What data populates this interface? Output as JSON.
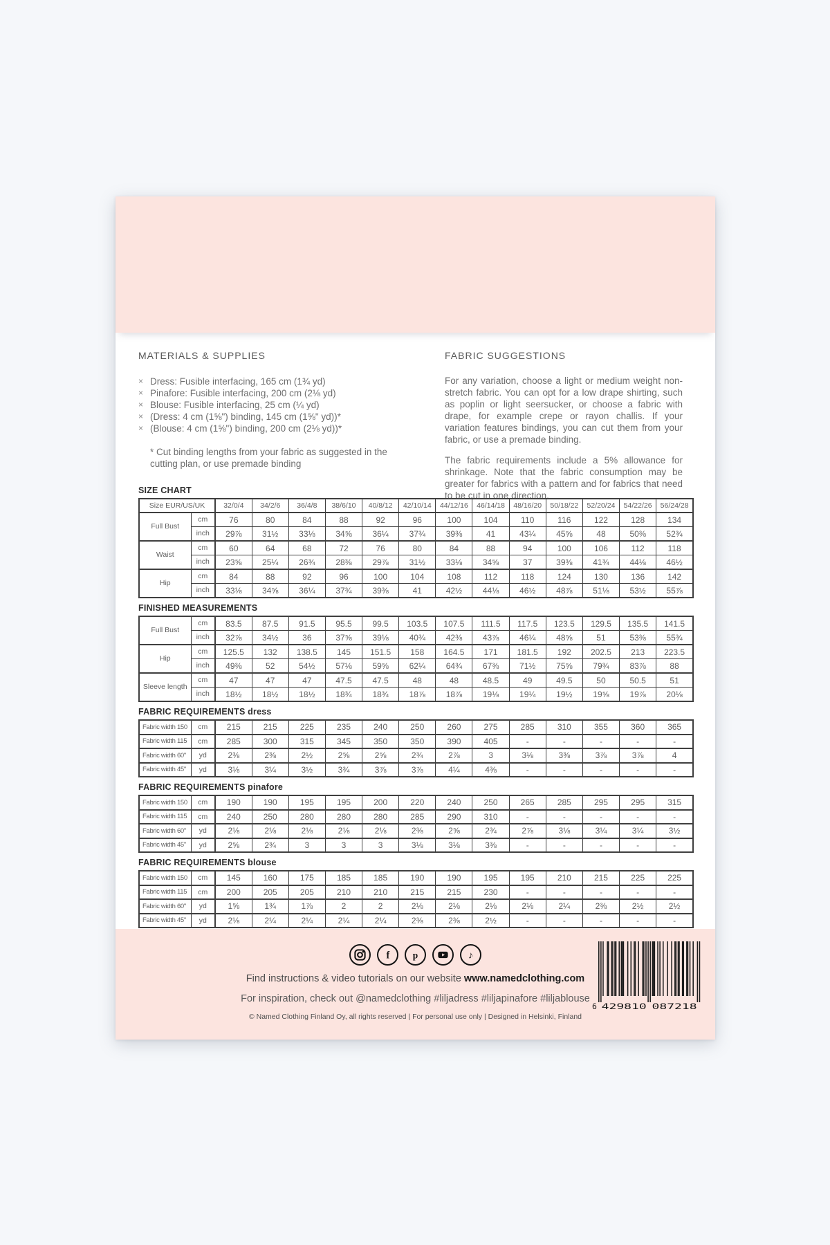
{
  "colors": {
    "pink": "#fce4df",
    "background": "#f5f7fa",
    "barcode_bar": "#1b1b1b"
  },
  "materials": {
    "title": "MATERIALS & SUPPLIES",
    "bullet": "×",
    "items": [
      "Dress: Fusible interfacing, 165 cm (1¾ yd)",
      "Pinafore: Fusible interfacing, 200 cm (2⅛ yd)",
      "Blouse: Fusible interfacing, 25 cm (¼ yd)",
      "(Dress: 4 cm (1⅝\") binding, 145 cm (1⅝\" yd))*",
      "(Blouse: 4 cm (1⅝\") binding, 200 cm (2⅛ yd))*"
    ],
    "footnote": "* Cut binding lengths from your fabric as suggested in the cutting plan, or use premade binding"
  },
  "fabric_suggestions": {
    "title": "FABRIC SUGGESTIONS",
    "paragraphs": [
      "For any variation, choose a light or medium weight non-stretch fabric. You can opt for a low drape shirting, such as poplin or light seersucker, or choose a fabric with drape, for example crepe or rayon challis. If your variation features bindings, you can cut them from your fabric, or use a premade binding.",
      "The fabric requirements include a 5% allowance for shrinkage. Note that the fabric consumption may be greater for fabrics with a pattern and for fabrics that need to be cut in one direction."
    ]
  },
  "size_chart": {
    "title": "SIZE CHART",
    "header": {
      "label": "Size EUR/US/UK",
      "sizes": [
        "32/0/4",
        "34/2/6",
        "36/4/8",
        "38/6/10",
        "40/8/12",
        "42/10/14",
        "44/12/16",
        "46/14/18",
        "48/16/20",
        "50/18/22",
        "52/20/24",
        "54/22/26",
        "56/24/28"
      ]
    },
    "groups": [
      {
        "label": "Full Bust",
        "rows": [
          {
            "unit": "cm",
            "values": [
              "76",
              "80",
              "84",
              "88",
              "92",
              "96",
              "100",
              "104",
              "110",
              "116",
              "122",
              "128",
              "134"
            ]
          },
          {
            "unit": "inch",
            "values": [
              "29⅞",
              "31½",
              "33⅛",
              "34⅝",
              "36¼",
              "37¾",
              "39⅜",
              "41",
              "43¼",
              "45⅝",
              "48",
              "50⅜",
              "52¾"
            ]
          }
        ]
      },
      {
        "label": "Waist",
        "rows": [
          {
            "unit": "cm",
            "values": [
              "60",
              "64",
              "68",
              "72",
              "76",
              "80",
              "84",
              "88",
              "94",
              "100",
              "106",
              "112",
              "118"
            ]
          },
          {
            "unit": "inch",
            "values": [
              "23⅝",
              "25¼",
              "26¾",
              "28⅜",
              "29⅞",
              "31½",
              "33⅛",
              "34⅝",
              "37",
              "39⅜",
              "41¾",
              "44⅛",
              "46½"
            ]
          }
        ]
      },
      {
        "label": "Hip",
        "rows": [
          {
            "unit": "cm",
            "values": [
              "84",
              "88",
              "92",
              "96",
              "100",
              "104",
              "108",
              "112",
              "118",
              "124",
              "130",
              "136",
              "142"
            ]
          },
          {
            "unit": "inch",
            "values": [
              "33⅛",
              "34⅝",
              "36¼",
              "37¾",
              "39⅜",
              "41",
              "42½",
              "44⅛",
              "46½",
              "48⅞",
              "51⅛",
              "53½",
              "55⅞"
            ]
          }
        ]
      }
    ]
  },
  "finished_measurements": {
    "title": "FINISHED MEASUREMENTS",
    "groups": [
      {
        "label": "Full Bust",
        "rows": [
          {
            "unit": "cm",
            "values": [
              "83.5",
              "87.5",
              "91.5",
              "95.5",
              "99.5",
              "103.5",
              "107.5",
              "111.5",
              "117.5",
              "123.5",
              "129.5",
              "135.5",
              "141.5"
            ]
          },
          {
            "unit": "inch",
            "values": [
              "32⅞",
              "34½",
              "36",
              "37⅝",
              "39⅛",
              "40¾",
              "42⅜",
              "43⅞",
              "46¼",
              "48⅝",
              "51",
              "53⅜",
              "55¾"
            ]
          }
        ]
      },
      {
        "label": "Hip",
        "rows": [
          {
            "unit": "cm",
            "values": [
              "125.5",
              "132",
              "138.5",
              "145",
              "151.5",
              "158",
              "164.5",
              "171",
              "181.5",
              "192",
              "202.5",
              "213",
              "223.5"
            ]
          },
          {
            "unit": "inch",
            "values": [
              "49⅜",
              "52",
              "54½",
              "57⅛",
              "59⅝",
              "62¼",
              "64¾",
              "67⅜",
              "71½",
              "75⅝",
              "79¾",
              "83⅞",
              "88"
            ]
          }
        ]
      },
      {
        "label": "Sleeve length",
        "rows": [
          {
            "unit": "cm",
            "values": [
              "47",
              "47",
              "47",
              "47.5",
              "47.5",
              "48",
              "48",
              "48.5",
              "49",
              "49.5",
              "50",
              "50.5",
              "51"
            ]
          },
          {
            "unit": "inch",
            "values": [
              "18½",
              "18½",
              "18½",
              "18¾",
              "18¾",
              "18⅞",
              "18⅞",
              "19⅛",
              "19¼",
              "19½",
              "19⅝",
              "19⅞",
              "20⅛"
            ]
          }
        ]
      }
    ]
  },
  "fabric_requirements": [
    {
      "title": "FABRIC REQUIREMENTS dress",
      "rows": [
        {
          "label": "Fabric width 150",
          "unit": "cm",
          "values": [
            "215",
            "215",
            "225",
            "235",
            "240",
            "250",
            "260",
            "275",
            "285",
            "310",
            "355",
            "360",
            "365"
          ]
        },
        {
          "label": "Fabric width 115",
          "unit": "cm",
          "values": [
            "285",
            "300",
            "315",
            "345",
            "350",
            "350",
            "390",
            "405",
            "-",
            "-",
            "-",
            "-",
            "-"
          ]
        },
        {
          "label": "Fabric width 60\"",
          "unit": "yd",
          "values": [
            "2⅜",
            "2⅜",
            "2½",
            "2⅝",
            "2⅝",
            "2¾",
            "2⅞",
            "3",
            "3⅛",
            "3⅜",
            "3⅞",
            "3⅞",
            "4"
          ]
        },
        {
          "label": "Fabric width 45\"",
          "unit": "yd",
          "values": [
            "3⅛",
            "3¼",
            "3½",
            "3¾",
            "3⅞",
            "3⅞",
            "4¼",
            "4⅜",
            "-",
            "-",
            "-",
            "-",
            "-"
          ]
        }
      ]
    },
    {
      "title": "FABRIC REQUIREMENTS pinafore",
      "rows": [
        {
          "label": "Fabric width 150",
          "unit": "cm",
          "values": [
            "190",
            "190",
            "195",
            "195",
            "200",
            "220",
            "240",
            "250",
            "265",
            "285",
            "295",
            "295",
            "315"
          ]
        },
        {
          "label": "Fabric width 115",
          "unit": "cm",
          "values": [
            "240",
            "250",
            "280",
            "280",
            "280",
            "285",
            "290",
            "310",
            "-",
            "-",
            "-",
            "-",
            "-"
          ]
        },
        {
          "label": "Fabric width 60\"",
          "unit": "yd",
          "values": [
            "2⅛",
            "2⅛",
            "2⅛",
            "2⅛",
            "2⅛",
            "2⅜",
            "2⅝",
            "2¾",
            "2⅞",
            "3⅛",
            "3¼",
            "3¼",
            "3½"
          ]
        },
        {
          "label": "Fabric width 45\"",
          "unit": "yd",
          "values": [
            "2⅝",
            "2¾",
            "3",
            "3",
            "3",
            "3⅛",
            "3⅛",
            "3⅜",
            "-",
            "-",
            "-",
            "-",
            "-"
          ]
        }
      ]
    },
    {
      "title": "FABRIC REQUIREMENTS blouse",
      "rows": [
        {
          "label": "Fabric width 150",
          "unit": "cm",
          "values": [
            "145",
            "160",
            "175",
            "185",
            "185",
            "190",
            "190",
            "195",
            "195",
            "210",
            "215",
            "225",
            "225"
          ]
        },
        {
          "label": "Fabric width 115",
          "unit": "cm",
          "values": [
            "200",
            "205",
            "205",
            "210",
            "210",
            "215",
            "215",
            "230",
            "-",
            "-",
            "-",
            "-",
            "-"
          ]
        },
        {
          "label": "Fabric width 60\"",
          "unit": "yd",
          "values": [
            "1⅝",
            "1¾",
            "1⅞",
            "2",
            "2",
            "2⅛",
            "2⅛",
            "2⅛",
            "2⅛",
            "2¼",
            "2⅜",
            "2½",
            "2½"
          ]
        },
        {
          "label": "Fabric width 45\"",
          "unit": "yd",
          "values": [
            "2⅛",
            "2¼",
            "2¼",
            "2¼",
            "2¼",
            "2⅜",
            "2⅜",
            "2½",
            "-",
            "-",
            "-",
            "-",
            "-"
          ]
        }
      ]
    }
  ],
  "footer": {
    "social_icons": [
      "instagram",
      "facebook",
      "pinterest",
      "youtube",
      "tiktok"
    ],
    "line1_prefix": "Find instructions & video tutorials on our website ",
    "line1_bold": "www.namedclothing.com",
    "line2": "For inspiration, check out @namedclothing #liljadress #liljapinafore #liljablouse",
    "copyright": "© Named Clothing Finland Oy, all rights reserved | For personal use only | Designed in Helsinki, Finland",
    "barcode_digits": "6429810087218"
  }
}
